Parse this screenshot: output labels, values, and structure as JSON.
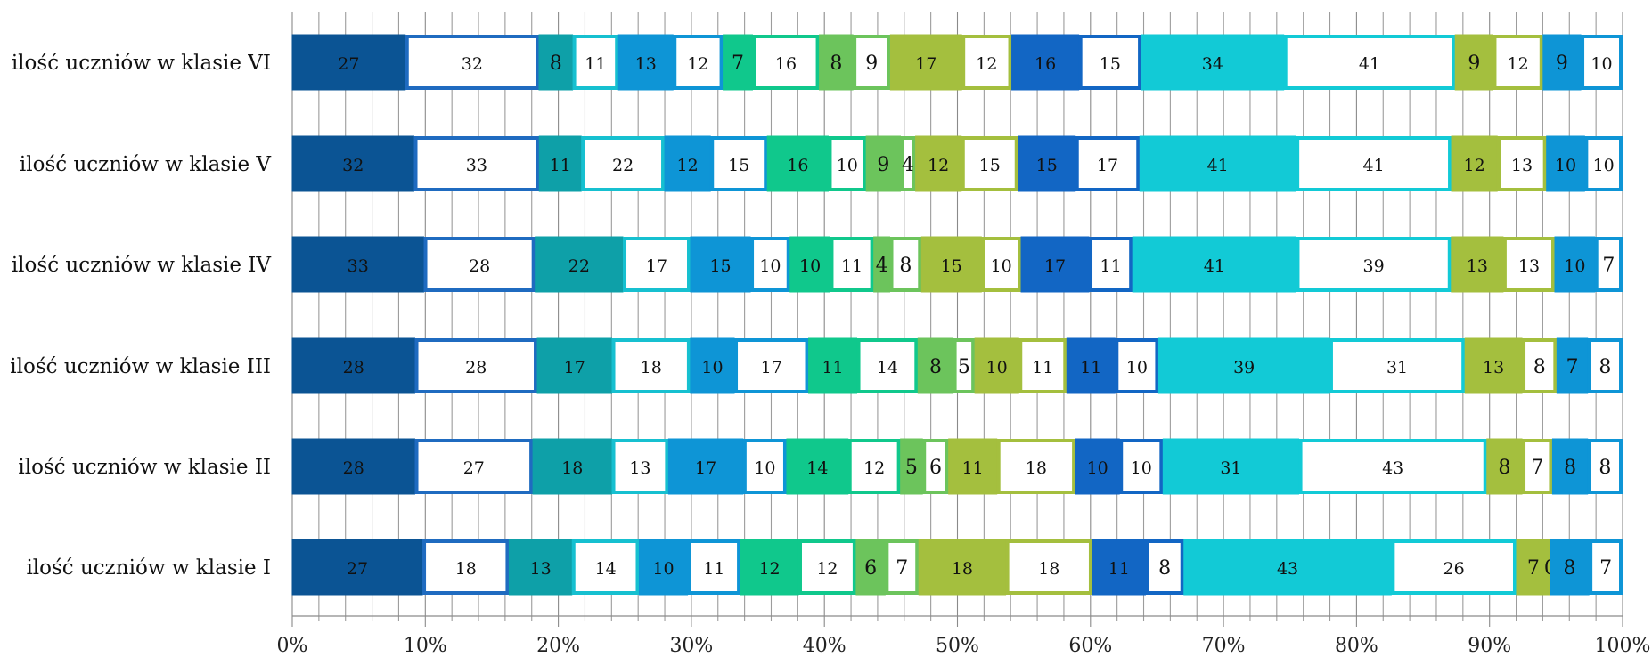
{
  "chart_data": {
    "type": "bar",
    "orientation": "horizontal",
    "stacking": "percent",
    "title": "",
    "xlabel": "",
    "ylabel": "",
    "xlim": [
      0,
      100
    ],
    "x_ticks": [
      "0%",
      "10%",
      "20%",
      "30%",
      "40%",
      "50%",
      "60%",
      "70%",
      "80%",
      "90%",
      "100%"
    ],
    "grid": "vertical",
    "legend": "none",
    "categories": [
      "ilość uczniów w klasie VI",
      "ilość uczniów w klasie V",
      "ilość uczniów w klasie IV",
      "ilość uczniów w klasie III",
      "ilość uczniów w klasie II",
      "ilość uczniów w klasie I"
    ],
    "series": [
      {
        "color": "#0b5494",
        "style": "filled",
        "values": [
          27,
          32,
          33,
          28,
          28,
          27
        ]
      },
      {
        "color": "#1f6bc0",
        "style": "outline",
        "values": [
          32,
          33,
          28,
          28,
          27,
          18
        ]
      },
      {
        "color": "#0ea0a8",
        "style": "filled",
        "values": [
          8,
          11,
          22,
          17,
          18,
          13
        ]
      },
      {
        "color": "#16c0d0",
        "style": "outline",
        "values": [
          11,
          22,
          17,
          18,
          13,
          14
        ]
      },
      {
        "color": "#0e95d6",
        "style": "filled",
        "values": [
          13,
          12,
          15,
          10,
          17,
          10
        ]
      },
      {
        "color": "#0e95d6",
        "style": "outline",
        "values": [
          12,
          15,
          10,
          17,
          10,
          11
        ]
      },
      {
        "color": "#10c88c",
        "style": "filled",
        "values": [
          7,
          16,
          10,
          11,
          14,
          12
        ]
      },
      {
        "color": "#10c88c",
        "style": "outline",
        "values": [
          16,
          10,
          11,
          14,
          12,
          12
        ]
      },
      {
        "color": "#6cc45c",
        "style": "filled",
        "values": [
          8,
          9,
          4,
          8,
          5,
          6
        ]
      },
      {
        "color": "#6cc45c",
        "style": "outline",
        "values": [
          9,
          4,
          8,
          5,
          6,
          7
        ]
      },
      {
        "color": "#a4bf3e",
        "style": "filled",
        "values": [
          17,
          12,
          15,
          10,
          11,
          18
        ]
      },
      {
        "color": "#a4bf3e",
        "style": "outline",
        "values": [
          12,
          15,
          10,
          11,
          18,
          18
        ]
      },
      {
        "color": "#1266c4",
        "style": "filled",
        "values": [
          16,
          15,
          17,
          11,
          10,
          11
        ]
      },
      {
        "color": "#1266c4",
        "style": "outline",
        "values": [
          15,
          17,
          11,
          10,
          10,
          8
        ]
      },
      {
        "color": "#12cad6",
        "style": "filled",
        "values": [
          34,
          41,
          41,
          39,
          31,
          43
        ]
      },
      {
        "color": "#12cad6",
        "style": "outline",
        "values": [
          41,
          41,
          39,
          31,
          43,
          26
        ]
      },
      {
        "color": "#a4bf3e",
        "style": "filled",
        "values": [
          9,
          12,
          13,
          13,
          8,
          7
        ]
      },
      {
        "color": "#a4bf3e",
        "style": "outline",
        "values": [
          12,
          13,
          13,
          8,
          7,
          0
        ]
      },
      {
        "color": "#0e95d6",
        "style": "filled",
        "values": [
          9,
          10,
          10,
          7,
          8,
          8
        ]
      },
      {
        "color": "#0e95d6",
        "style": "outline",
        "values": [
          10,
          10,
          7,
          8,
          8,
          7
        ]
      }
    ]
  }
}
